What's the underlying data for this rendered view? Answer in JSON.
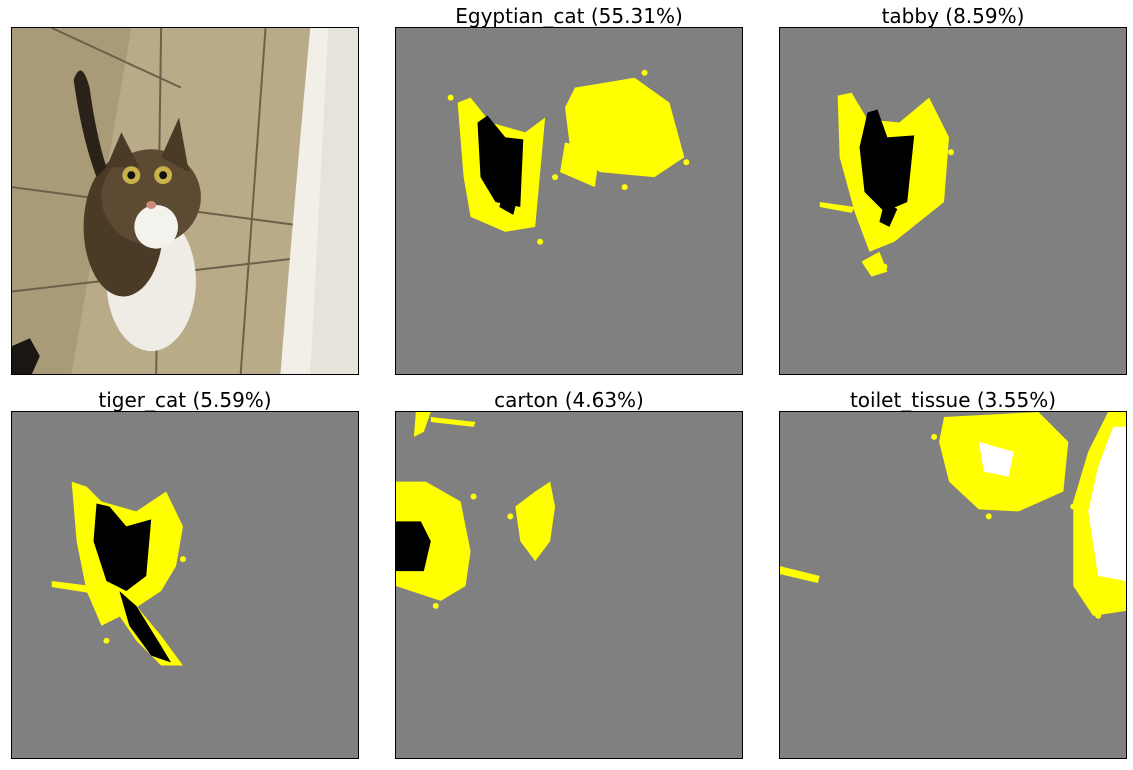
{
  "figure": {
    "panels": [
      {
        "title": "",
        "kind": "photo",
        "content": "tabby cat on tiled floor"
      },
      {
        "title": "Egyptian_cat (55.31%)",
        "kind": "explanation",
        "label": "Egyptian_cat",
        "probability_percent": 55.31
      },
      {
        "title": "tabby (8.59%)",
        "kind": "explanation",
        "label": "tabby",
        "probability_percent": 8.59
      },
      {
        "title": "tiger_cat (5.59%)",
        "kind": "explanation",
        "label": "tiger_cat",
        "probability_percent": 5.59
      },
      {
        "title": "carton (4.63%)",
        "kind": "explanation",
        "label": "carton",
        "probability_percent": 4.63
      },
      {
        "title": "toilet_tissue (3.55%)",
        "kind": "explanation",
        "label": "toilet_tissue",
        "probability_percent": 3.55
      }
    ],
    "colors": {
      "mask_background": "#808080",
      "highlight": "#ffff00",
      "mask_dark": "#000000",
      "mask_light": "#ffffff"
    }
  }
}
